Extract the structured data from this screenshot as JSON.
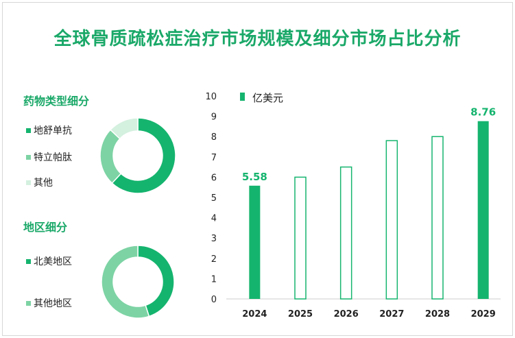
{
  "title": "全球骨质疏松症治疗市场规模及细分市场占比分析",
  "drug_section": {
    "title": "药物类型细分",
    "items": [
      {
        "label": "地舒单抗",
        "share": 0.62,
        "color": "#15b46e"
      },
      {
        "label": "特立帕肽",
        "share": 0.25,
        "color": "#7dd3a4"
      },
      {
        "label": "其他",
        "share": 0.13,
        "color": "#d4f0df"
      }
    ]
  },
  "region_section": {
    "title": "地区细分",
    "items": [
      {
        "label": "北美地区",
        "share": 0.45,
        "color": "#15b46e"
      },
      {
        "label": "其他地区",
        "share": 0.55,
        "color": "#7dd3a4"
      }
    ]
  },
  "chart_data": {
    "type": "bar",
    "legend": "亿美元",
    "categories": [
      "2024",
      "2025",
      "2026",
      "2027",
      "2028",
      "2029"
    ],
    "values": [
      5.58,
      6.0,
      6.5,
      7.8,
      8.0,
      8.76
    ],
    "filled": [
      true,
      false,
      false,
      false,
      false,
      true
    ],
    "data_labels": [
      "5.58",
      "",
      "",
      "",
      "",
      "8.76"
    ],
    "ylim": [
      0,
      10
    ],
    "yticks": [
      "0",
      "1",
      "2",
      "3",
      "4",
      "5",
      "6",
      "7",
      "8",
      "9",
      "10"
    ],
    "color": "#15b46e"
  }
}
